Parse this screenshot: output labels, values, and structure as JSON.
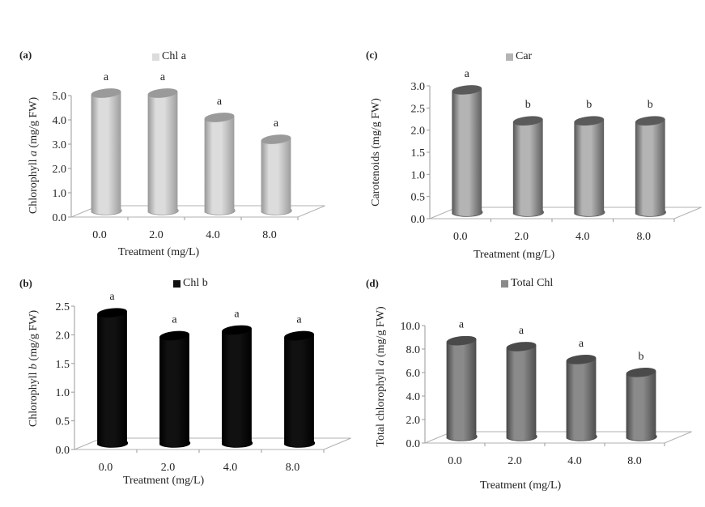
{
  "chart_data": [
    {
      "id": "a",
      "type": "bar",
      "panel_label": "(a)",
      "legend": [
        "Chl a"
      ],
      "series_color": "#dcdcdc",
      "series_edge": "#9a9a9a",
      "categories": [
        "0.0",
        "2.0",
        "4.0",
        "8.0"
      ],
      "values": [
        4.9,
        4.9,
        3.9,
        3.0
      ],
      "significance": [
        "a",
        "a",
        "a",
        "a"
      ],
      "xlabel": "Treatment (mg/L)",
      "ylabel_parts": [
        "Chlorophyll ",
        "a",
        " (mg/g FW)"
      ],
      "ylim": [
        0,
        5.0
      ],
      "yticks": [
        "0.0",
        "1.0",
        "2.0",
        "3.0",
        "4.0",
        "5.0"
      ],
      "grid": false,
      "legend_position": "top-center"
    },
    {
      "id": "c",
      "type": "bar",
      "panel_label": "(c)",
      "legend": [
        "Car"
      ],
      "series_color": "#b4b4b4",
      "series_edge": "#5a5a5a",
      "categories": [
        "0.0",
        "2.0",
        "4.0",
        "8.0"
      ],
      "values": [
        2.8,
        2.1,
        2.1,
        2.1
      ],
      "significance": [
        "a",
        "b",
        "b",
        "b"
      ],
      "xlabel": "Treatment (mg/L)",
      "ylabel_parts": [
        "Carotenoids (mg/g FW)"
      ],
      "ylim": [
        0,
        3.0
      ],
      "yticks": [
        "0.0",
        "0.5",
        "1.0",
        "1.5",
        "2.0",
        "2.5",
        "3.0"
      ],
      "grid": false,
      "legend_position": "top-center"
    },
    {
      "id": "b",
      "type": "bar",
      "panel_label": "(b)",
      "legend": [
        "Chl b"
      ],
      "series_color": "#111111",
      "series_edge": "#000000",
      "categories": [
        "0.0",
        "2.0",
        "4.0",
        "8.0"
      ],
      "values": [
        2.3,
        1.9,
        2.0,
        1.9
      ],
      "significance": [
        "a",
        "a",
        "a",
        "a"
      ],
      "xlabel": "Treatment (mg/L)",
      "ylabel_parts": [
        "Chlorophyll ",
        "b",
        " (mg/g FW)"
      ],
      "ylim": [
        0,
        2.5
      ],
      "yticks": [
        "0.0",
        "0.5",
        "1.0",
        "1.5",
        "2.0",
        "2.5"
      ],
      "grid": false,
      "legend_position": "top-center"
    },
    {
      "id": "d",
      "type": "bar",
      "panel_label": "(d)",
      "legend": [
        "Total Chl"
      ],
      "series_color": "#8a8a8a",
      "series_edge": "#4a4a4a",
      "categories": [
        "0.0",
        "2.0",
        "4.0",
        "8.0"
      ],
      "values": [
        8.3,
        7.8,
        6.7,
        5.6
      ],
      "significance": [
        "a",
        "a",
        "a",
        "b"
      ],
      "xlabel": "Treatment (mg/L)",
      "ylabel_parts": [
        "Total chlorophyll ",
        "a",
        " (mg/g FW)"
      ],
      "ylim": [
        0,
        10.0
      ],
      "yticks": [
        "0.0",
        "2.0",
        "4.0",
        "6.0",
        "8.0",
        "10.0"
      ],
      "grid": false,
      "legend_position": "top-center"
    }
  ]
}
